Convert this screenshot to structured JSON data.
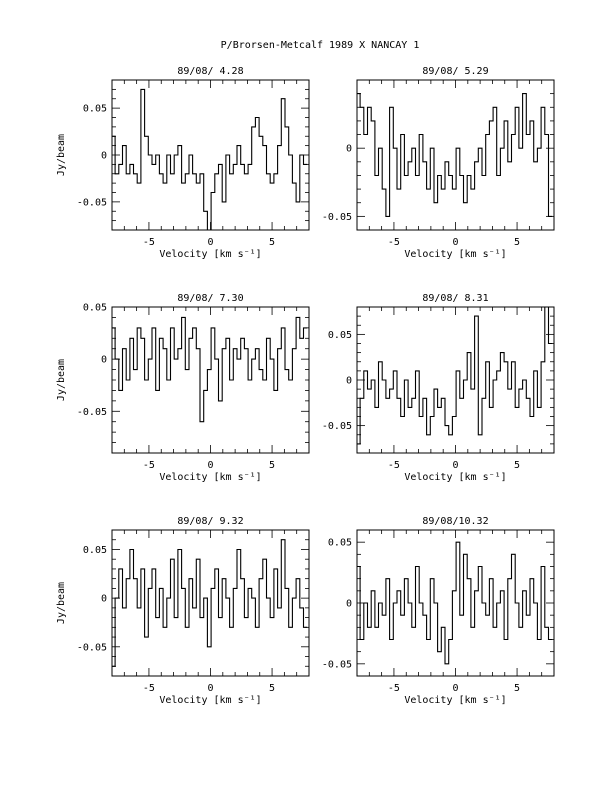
{
  "page": {
    "title": "P/Brorsen-Metcalf 1989 X   NANCAY     1"
  },
  "chart_data": [
    {
      "type": "line",
      "step": true,
      "title": "89/08/ 4.28",
      "xlabel": "Velocity [km s⁻¹]",
      "ylabel": "Jy/beam",
      "xlim": [
        -8,
        8
      ],
      "ylim": [
        -0.08,
        0.08
      ],
      "xticks": [
        -5,
        0,
        5
      ],
      "yticks": [
        0.05,
        0,
        -0.05
      ],
      "ytick_labels": [
        "0.05",
        "0",
        "-0.05"
      ],
      "x": [
        -7.9,
        -7.6,
        -7.3,
        -7.0,
        -6.7,
        -6.4,
        -6.1,
        -5.8,
        -5.5,
        -5.2,
        -4.9,
        -4.6,
        -4.3,
        -4.0,
        -3.7,
        -3.4,
        -3.1,
        -2.8,
        -2.5,
        -2.2,
        -1.9,
        -1.6,
        -1.3,
        -1.0,
        -0.7,
        -0.4,
        -0.1,
        0.2,
        0.5,
        0.8,
        1.1,
        1.4,
        1.7,
        2.0,
        2.3,
        2.6,
        2.9,
        3.2,
        3.5,
        3.8,
        4.1,
        4.4,
        4.7,
        5.0,
        5.3,
        5.6,
        5.9,
        6.2,
        6.5,
        6.8,
        7.1,
        7.4,
        7.7
      ],
      "values": [
        0.02,
        -0.02,
        -0.01,
        0.01,
        -0.02,
        -0.01,
        -0.02,
        -0.03,
        0.07,
        0.02,
        0.0,
        -0.01,
        0.0,
        -0.02,
        -0.03,
        0.0,
        -0.02,
        0.0,
        0.01,
        -0.03,
        -0.02,
        0.0,
        -0.02,
        -0.03,
        -0.02,
        -0.06,
        -0.08,
        -0.04,
        -0.02,
        -0.01,
        -0.05,
        0.0,
        -0.02,
        -0.01,
        0.01,
        -0.01,
        -0.02,
        -0.01,
        0.03,
        0.04,
        0.02,
        0.01,
        -0.02,
        -0.03,
        -0.02,
        0.01,
        0.06,
        0.03,
        0.0,
        -0.03,
        -0.05,
        0.0,
        -0.01
      ]
    },
    {
      "type": "line",
      "step": true,
      "title": "89/08/ 5.29",
      "xlabel": "Velocity [km s⁻¹]",
      "ylabel": "",
      "xlim": [
        -8,
        8
      ],
      "ylim": [
        -0.06,
        0.05
      ],
      "xticks": [
        -5,
        0,
        5
      ],
      "yticks": [
        0,
        -0.05
      ],
      "ytick_labels": [
        "0",
        "-0.05"
      ],
      "x": [
        -7.9,
        -7.6,
        -7.3,
        -7.0,
        -6.7,
        -6.4,
        -6.1,
        -5.8,
        -5.5,
        -5.2,
        -4.9,
        -4.6,
        -4.3,
        -4.0,
        -3.7,
        -3.4,
        -3.1,
        -2.8,
        -2.5,
        -2.2,
        -1.9,
        -1.6,
        -1.3,
        -1.0,
        -0.7,
        -0.4,
        -0.1,
        0.2,
        0.5,
        0.8,
        1.1,
        1.4,
        1.7,
        2.0,
        2.3,
        2.6,
        2.9,
        3.2,
        3.5,
        3.8,
        4.1,
        4.4,
        4.7,
        5.0,
        5.3,
        5.6,
        5.9,
        6.2,
        6.5,
        6.8,
        7.1,
        7.4,
        7.7
      ],
      "values": [
        0.04,
        0.03,
        0.01,
        0.03,
        0.02,
        -0.02,
        0.0,
        -0.03,
        -0.05,
        0.03,
        0.0,
        -0.03,
        0.01,
        -0.02,
        -0.01,
        0.0,
        -0.02,
        0.01,
        -0.01,
        -0.03,
        0.0,
        -0.04,
        -0.02,
        -0.03,
        -0.01,
        -0.02,
        -0.03,
        0.0,
        -0.02,
        -0.04,
        -0.02,
        -0.03,
        -0.01,
        0.0,
        -0.02,
        0.01,
        0.02,
        0.03,
        -0.02,
        0.0,
        0.02,
        -0.01,
        0.01,
        0.03,
        0.0,
        0.04,
        0.01,
        0.02,
        -0.01,
        0.0,
        0.03,
        0.01,
        -0.05
      ]
    },
    {
      "type": "line",
      "step": true,
      "title": "89/08/ 7.30",
      "xlabel": "Velocity [km s⁻¹]",
      "ylabel": "Jy/beam",
      "xlim": [
        -8,
        8
      ],
      "ylim": [
        -0.09,
        0.05
      ],
      "xticks": [
        -5,
        0,
        5
      ],
      "yticks": [
        0.05,
        0,
        -0.05
      ],
      "ytick_labels": [
        "0.05",
        "0",
        "-0.05"
      ],
      "x": [
        -7.9,
        -7.6,
        -7.3,
        -7.0,
        -6.7,
        -6.4,
        -6.1,
        -5.8,
        -5.5,
        -5.2,
        -4.9,
        -4.6,
        -4.3,
        -4.0,
        -3.7,
        -3.4,
        -3.1,
        -2.8,
        -2.5,
        -2.2,
        -1.9,
        -1.6,
        -1.3,
        -1.0,
        -0.7,
        -0.4,
        -0.1,
        0.2,
        0.5,
        0.8,
        1.1,
        1.4,
        1.7,
        2.0,
        2.3,
        2.6,
        2.9,
        3.2,
        3.5,
        3.8,
        4.1,
        4.4,
        4.7,
        5.0,
        5.3,
        5.6,
        5.9,
        6.2,
        6.5,
        6.8,
        7.1,
        7.4,
        7.7
      ],
      "values": [
        0.03,
        0.0,
        -0.03,
        0.01,
        -0.02,
        0.02,
        -0.01,
        0.03,
        0.02,
        -0.02,
        0.0,
        0.03,
        -0.03,
        0.02,
        0.01,
        -0.02,
        0.03,
        0.0,
        0.01,
        0.04,
        -0.01,
        0.02,
        0.03,
        0.01,
        -0.06,
        -0.03,
        -0.01,
        0.03,
        0.0,
        -0.04,
        0.01,
        0.02,
        -0.02,
        0.01,
        0.0,
        0.02,
        0.01,
        -0.02,
        0.0,
        0.01,
        -0.01,
        -0.02,
        0.02,
        0.0,
        -0.03,
        0.01,
        0.03,
        -0.01,
        -0.02,
        0.01,
        0.04,
        0.02,
        0.03
      ]
    },
    {
      "type": "line",
      "step": true,
      "title": "89/08/ 8.31",
      "xlabel": "Velocity [km s⁻¹]",
      "ylabel": "",
      "xlim": [
        -8,
        8
      ],
      "ylim": [
        -0.08,
        0.08
      ],
      "xticks": [
        -5,
        0,
        5
      ],
      "yticks": [
        0.05,
        0,
        -0.05
      ],
      "ytick_labels": [
        "0.05",
        "0",
        "-0.05"
      ],
      "x": [
        -7.9,
        -7.6,
        -7.3,
        -7.0,
        -6.7,
        -6.4,
        -6.1,
        -5.8,
        -5.5,
        -5.2,
        -4.9,
        -4.6,
        -4.3,
        -4.0,
        -3.7,
        -3.4,
        -3.1,
        -2.8,
        -2.5,
        -2.2,
        -1.9,
        -1.6,
        -1.3,
        -1.0,
        -0.7,
        -0.4,
        -0.1,
        0.2,
        0.5,
        0.8,
        1.1,
        1.4,
        1.7,
        2.0,
        2.3,
        2.6,
        2.9,
        3.2,
        3.5,
        3.8,
        4.1,
        4.4,
        4.7,
        5.0,
        5.3,
        5.6,
        5.9,
        6.2,
        6.5,
        6.8,
        7.1,
        7.4,
        7.7
      ],
      "values": [
        -0.07,
        -0.02,
        0.01,
        -0.01,
        0.0,
        -0.03,
        0.02,
        0.0,
        -0.02,
        -0.01,
        0.01,
        -0.02,
        -0.04,
        0.0,
        -0.03,
        -0.02,
        0.01,
        -0.04,
        -0.02,
        -0.06,
        -0.04,
        -0.01,
        -0.03,
        -0.02,
        -0.05,
        -0.06,
        -0.04,
        0.01,
        -0.02,
        0.0,
        0.03,
        -0.01,
        0.07,
        -0.06,
        -0.02,
        0.02,
        -0.03,
        0.0,
        0.01,
        0.03,
        0.02,
        -0.01,
        0.02,
        -0.03,
        -0.01,
        0.0,
        -0.02,
        -0.04,
        0.01,
        -0.03,
        0.02,
        0.08,
        0.04
      ]
    },
    {
      "type": "line",
      "step": true,
      "title": "89/08/ 9.32",
      "xlabel": "Velocity [km s⁻¹]",
      "ylabel": "Jy/beam",
      "xlim": [
        -8,
        8
      ],
      "ylim": [
        -0.08,
        0.07
      ],
      "xticks": [
        -5,
        0,
        5
      ],
      "yticks": [
        0.05,
        0,
        -0.05
      ],
      "ytick_labels": [
        "0.05",
        "0",
        "-0.05"
      ],
      "x": [
        -7.9,
        -7.6,
        -7.3,
        -7.0,
        -6.7,
        -6.4,
        -6.1,
        -5.8,
        -5.5,
        -5.2,
        -4.9,
        -4.6,
        -4.3,
        -4.0,
        -3.7,
        -3.4,
        -3.1,
        -2.8,
        -2.5,
        -2.2,
        -1.9,
        -1.6,
        -1.3,
        -1.0,
        -0.7,
        -0.4,
        -0.1,
        0.2,
        0.5,
        0.8,
        1.1,
        1.4,
        1.7,
        2.0,
        2.3,
        2.6,
        2.9,
        3.2,
        3.5,
        3.8,
        4.1,
        4.4,
        4.7,
        5.0,
        5.3,
        5.6,
        5.9,
        6.2,
        6.5,
        6.8,
        7.1,
        7.4,
        7.7
      ],
      "values": [
        -0.07,
        0.0,
        0.03,
        -0.01,
        0.02,
        0.05,
        0.02,
        -0.01,
        0.03,
        -0.04,
        0.01,
        0.03,
        -0.02,
        0.01,
        -0.03,
        0.0,
        0.04,
        -0.02,
        0.05,
        0.01,
        -0.03,
        0.02,
        -0.01,
        0.04,
        -0.02,
        0.0,
        -0.05,
        0.01,
        0.03,
        -0.02,
        0.02,
        0.0,
        -0.03,
        0.01,
        0.05,
        0.02,
        -0.02,
        0.01,
        0.0,
        -0.03,
        0.02,
        0.04,
        0.0,
        -0.02,
        0.03,
        -0.01,
        0.06,
        0.01,
        -0.03,
        0.0,
        0.02,
        -0.01,
        -0.03
      ]
    },
    {
      "type": "line",
      "step": true,
      "title": "89/08/10.32",
      "xlabel": "Velocity [km s⁻¹]",
      "ylabel": "",
      "xlim": [
        -8,
        8
      ],
      "ylim": [
        -0.06,
        0.06
      ],
      "xticks": [
        -5,
        0,
        5
      ],
      "yticks": [
        0.05,
        0,
        -0.05
      ],
      "ytick_labels": [
        "0.05",
        "0",
        "-0.05"
      ],
      "x": [
        -7.9,
        -7.6,
        -7.3,
        -7.0,
        -6.7,
        -6.4,
        -6.1,
        -5.8,
        -5.5,
        -5.2,
        -4.9,
        -4.6,
        -4.3,
        -4.0,
        -3.7,
        -3.4,
        -3.1,
        -2.8,
        -2.5,
        -2.2,
        -1.9,
        -1.6,
        -1.3,
        -1.0,
        -0.7,
        -0.4,
        -0.1,
        0.2,
        0.5,
        0.8,
        1.1,
        1.4,
        1.7,
        2.0,
        2.3,
        2.6,
        2.9,
        3.2,
        3.5,
        3.8,
        4.1,
        4.4,
        4.7,
        5.0,
        5.3,
        5.6,
        5.9,
        6.2,
        6.5,
        6.8,
        7.1,
        7.4,
        7.7
      ],
      "values": [
        0.03,
        -0.03,
        0.0,
        -0.02,
        0.01,
        -0.02,
        0.0,
        -0.01,
        0.02,
        -0.03,
        0.0,
        0.01,
        -0.01,
        0.02,
        0.0,
        -0.02,
        0.03,
        0.0,
        -0.01,
        -0.03,
        0.02,
        0.0,
        -0.04,
        -0.02,
        -0.05,
        -0.03,
        0.01,
        0.05,
        -0.01,
        0.04,
        0.02,
        -0.02,
        0.01,
        0.03,
        0.0,
        -0.01,
        0.02,
        -0.02,
        0.0,
        0.01,
        -0.03,
        0.02,
        0.04,
        0.0,
        -0.02,
        0.01,
        -0.01,
        0.02,
        0.0,
        -0.03,
        0.03,
        -0.02,
        -0.03
      ]
    }
  ]
}
